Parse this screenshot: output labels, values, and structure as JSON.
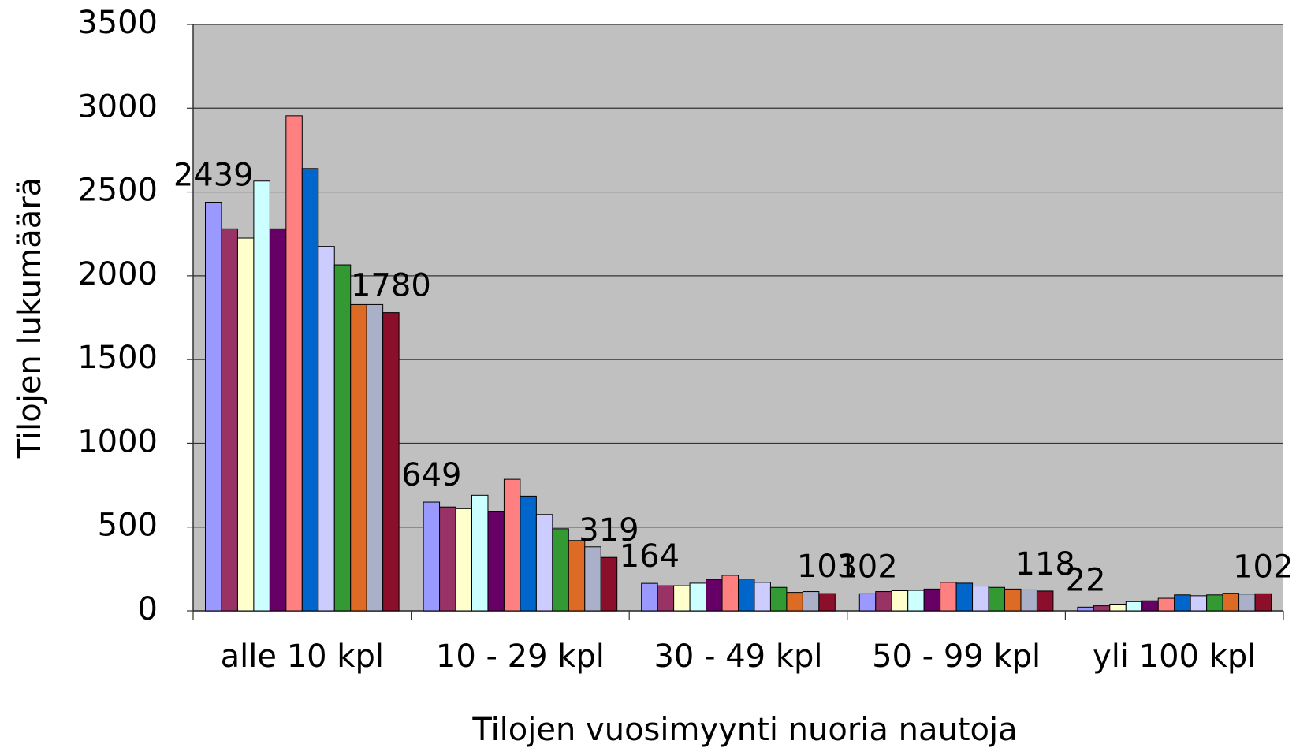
{
  "chart_data": {
    "type": "bar",
    "x_label": "Tilojen vuosimyynti nuoria nautoja",
    "y_label": "Tilojen lukumäärä",
    "categories": [
      "alle 10 kpl",
      "10 - 29 kpl",
      "30 - 49 kpl",
      "50 - 99 kpl",
      "yli 100 kpl"
    ],
    "ylim": [
      0,
      3500
    ],
    "yticks": [
      0,
      500,
      1000,
      1500,
      2000,
      2500,
      3000,
      3500
    ],
    "grid": true,
    "series": [
      {
        "color": "#9999ff",
        "values": [
          2439,
          649,
          164,
          102,
          22
        ],
        "data_labels": true
      },
      {
        "color": "#993366",
        "values": [
          2280,
          620,
          150,
          115,
          30
        ]
      },
      {
        "color": "#ffffcc",
        "values": [
          2225,
          610,
          150,
          120,
          40
        ]
      },
      {
        "color": "#ccffff",
        "values": [
          2565,
          690,
          165,
          122,
          55
        ]
      },
      {
        "color": "#660066",
        "values": [
          2280,
          595,
          188,
          130,
          60
        ]
      },
      {
        "color": "#ff8080",
        "values": [
          2955,
          785,
          212,
          170,
          75
        ]
      },
      {
        "color": "#0066cc",
        "values": [
          2640,
          685,
          190,
          165,
          95
        ]
      },
      {
        "color": "#ccccff",
        "values": [
          2175,
          575,
          170,
          148,
          90
        ]
      },
      {
        "color": "#339933",
        "values": [
          2065,
          490,
          140,
          140,
          95
        ]
      },
      {
        "color": "#dd6a25",
        "values": [
          1828,
          420,
          110,
          130,
          105
        ]
      },
      {
        "color": "#aab0c8",
        "values": [
          1828,
          382,
          115,
          125,
          100
        ]
      },
      {
        "color": "#8b0e2a",
        "values": [
          1780,
          319,
          103,
          118,
          102
        ],
        "data_labels": true
      }
    ]
  }
}
